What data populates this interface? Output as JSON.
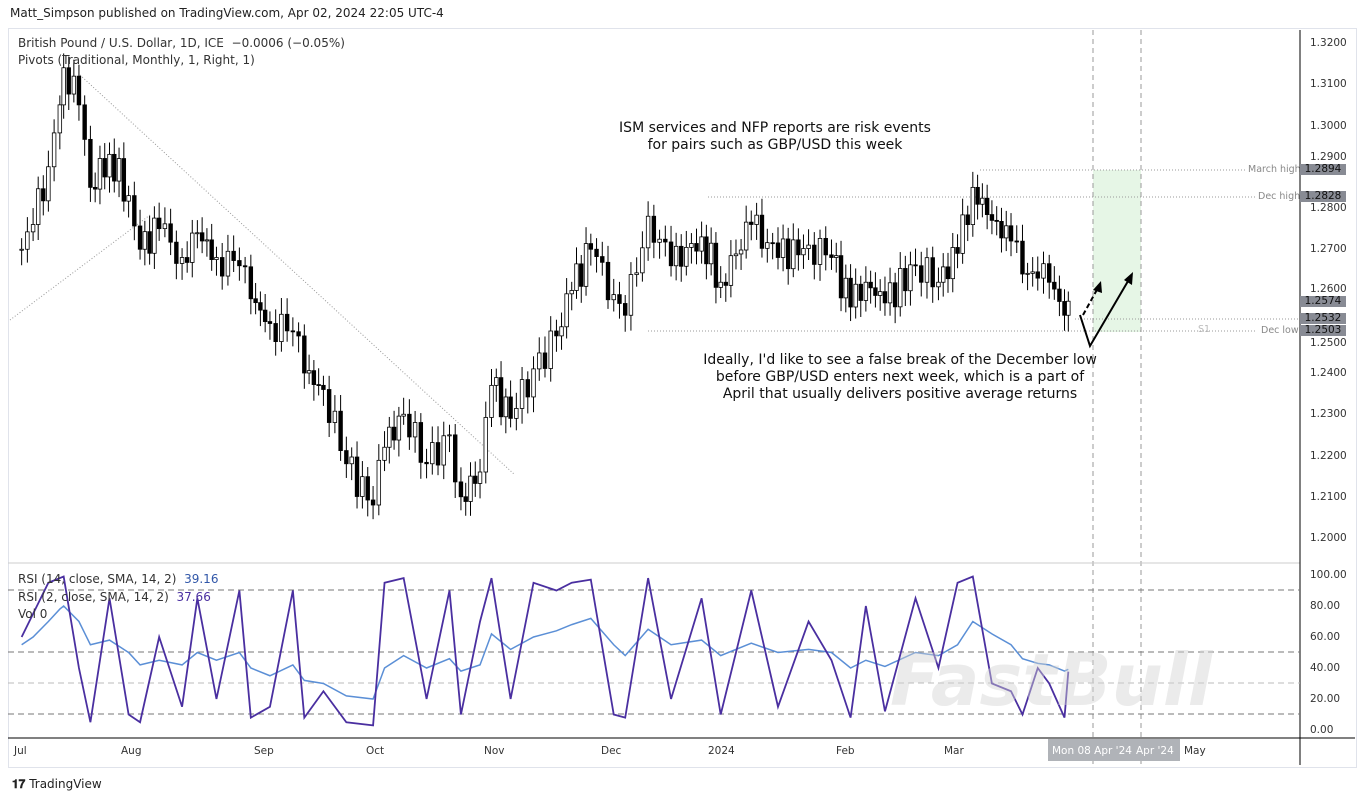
{
  "header": {
    "published": "Matt_Simpson published on TradingView.com, Apr 02, 2024 22:05 UTC-4"
  },
  "legend": {
    "symbol": "British Pound / U.S. Dollar, 1D, ICE",
    "change": "−0.0006 (−0.05%)",
    "pivots": "Pivots (Traditional, Monthly, 1, Right, 1)",
    "rsi14": "RSI (14, close, SMA, 14, 2)",
    "rsi14_value": "39.16",
    "rsi2": "RSI (2, close, SMA, 14, 2)",
    "rsi2_value": "37.66",
    "vol": "Vol 0"
  },
  "annotations": {
    "top": "ISM services and NFP reports are risk events\nfor pairs such as GBP/USD this week",
    "bottom": "Ideally, I'd like to see a false break of the December low\nbefore GBP/USD enters next week, which is a part of\nApril that usually delivers positive average returns",
    "march_high": "March high",
    "dec_high": "Dec high",
    "dec_low": "Dec low",
    "s1": "S1"
  },
  "price_tags": [
    "1.2894",
    "1.2828",
    "1.2574",
    "1.2532",
    "1.2503"
  ],
  "colors": {
    "up": "#ffffff",
    "down": "#000000",
    "rsi2": "#4a2fa0",
    "rsi14": "#5b8fd6",
    "zone": "#e6f6e6"
  },
  "watermark": "FastBull",
  "branding": "TradingView",
  "chart_data": {
    "type": "candlestick",
    "ylim": [
      1.195,
      1.325
    ],
    "y_ticks": [
      "1.3200",
      "1.3100",
      "1.3000",
      "1.2900",
      "1.2800",
      "1.2700",
      "1.2600",
      "1.2500",
      "1.2400",
      "1.2300",
      "1.2200",
      "1.2100",
      "1.2000"
    ],
    "x_ticks": [
      "Jul",
      "Aug",
      "Sep",
      "Oct",
      "Nov",
      "Dec",
      "2024",
      "Feb",
      "Mar",
      "Apr",
      "May"
    ],
    "x_cursor_labels": [
      "Mon 08 Apr '24",
      "Apr '24"
    ],
    "rsi_ticks": [
      "100.00",
      "80.00",
      "60.00",
      "40.00",
      "20.00",
      "0.00"
    ],
    "series": [
      {
        "date": "2023-07-03",
        "close": 1.27,
        "rsi2": 60,
        "rsi14": 55
      },
      {
        "date": "2023-07-06",
        "close": 1.276,
        "rsi2": 75,
        "rsi14": 60
      },
      {
        "date": "2023-07-10",
        "close": 1.29,
        "rsi2": 95,
        "rsi14": 70
      },
      {
        "date": "2023-07-13",
        "close": 1.305,
        "rsi2": 98,
        "rsi14": 78
      },
      {
        "date": "2023-07-14",
        "close": 1.314,
        "rsi2": 99,
        "rsi14": 80
      },
      {
        "date": "2023-07-18",
        "close": 1.305,
        "rsi2": 40,
        "rsi14": 70
      },
      {
        "date": "2023-07-21",
        "close": 1.285,
        "rsi2": 5,
        "rsi14": 55
      },
      {
        "date": "2023-07-26",
        "close": 1.293,
        "rsi2": 85,
        "rsi14": 58
      },
      {
        "date": "2023-07-31",
        "close": 1.283,
        "rsi2": 10,
        "rsi14": 50
      },
      {
        "date": "2023-08-03",
        "close": 1.27,
        "rsi2": 5,
        "rsi14": 42
      },
      {
        "date": "2023-08-08",
        "close": 1.275,
        "rsi2": 60,
        "rsi14": 45
      },
      {
        "date": "2023-08-14",
        "close": 1.268,
        "rsi2": 15,
        "rsi14": 42
      },
      {
        "date": "2023-08-18",
        "close": 1.274,
        "rsi2": 85,
        "rsi14": 50
      },
      {
        "date": "2023-08-23",
        "close": 1.268,
        "rsi2": 20,
        "rsi14": 45
      },
      {
        "date": "2023-08-29",
        "close": 1.266,
        "rsi2": 90,
        "rsi14": 50
      },
      {
        "date": "2023-09-01",
        "close": 1.258,
        "rsi2": 8,
        "rsi14": 40
      },
      {
        "date": "2023-09-06",
        "close": 1.252,
        "rsi2": 15,
        "rsi14": 35
      },
      {
        "date": "2023-09-12",
        "close": 1.25,
        "rsi2": 90,
        "rsi14": 42
      },
      {
        "date": "2023-09-15",
        "close": 1.24,
        "rsi2": 8,
        "rsi14": 32
      },
      {
        "date": "2023-09-20",
        "close": 1.236,
        "rsi2": 25,
        "rsi14": 30
      },
      {
        "date": "2023-09-26",
        "close": 1.218,
        "rsi2": 5,
        "rsi14": 22
      },
      {
        "date": "2023-10-03",
        "close": 1.208,
        "rsi2": 3,
        "rsi14": 20
      },
      {
        "date": "2023-10-06",
        "close": 1.222,
        "rsi2": 95,
        "rsi14": 40
      },
      {
        "date": "2023-10-11",
        "close": 1.23,
        "rsi2": 98,
        "rsi14": 48
      },
      {
        "date": "2023-10-17",
        "close": 1.218,
        "rsi2": 20,
        "rsi14": 40
      },
      {
        "date": "2023-10-23",
        "close": 1.225,
        "rsi2": 90,
        "rsi14": 46
      },
      {
        "date": "2023-10-26",
        "close": 1.21,
        "rsi2": 10,
        "rsi14": 38
      },
      {
        "date": "2023-10-31",
        "close": 1.216,
        "rsi2": 70,
        "rsi14": 42
      },
      {
        "date": "2023-11-03",
        "close": 1.237,
        "rsi2": 98,
        "rsi14": 62
      },
      {
        "date": "2023-11-08",
        "close": 1.229,
        "rsi2": 20,
        "rsi14": 52
      },
      {
        "date": "2023-11-14",
        "close": 1.241,
        "rsi2": 95,
        "rsi14": 60
      },
      {
        "date": "2023-11-20",
        "close": 1.249,
        "rsi2": 90,
        "rsi14": 64
      },
      {
        "date": "2023-11-24",
        "close": 1.26,
        "rsi2": 95,
        "rsi14": 68
      },
      {
        "date": "2023-11-29",
        "close": 1.27,
        "rsi2": 97,
        "rsi14": 72
      },
      {
        "date": "2023-12-05",
        "close": 1.259,
        "rsi2": 10,
        "rsi14": 55
      },
      {
        "date": "2023-12-08",
        "close": 1.254,
        "rsi2": 8,
        "rsi14": 48
      },
      {
        "date": "2023-12-14",
        "close": 1.278,
        "rsi2": 98,
        "rsi14": 65
      },
      {
        "date": "2023-12-20",
        "close": 1.266,
        "rsi2": 20,
        "rsi14": 55
      },
      {
        "date": "2023-12-28",
        "close": 1.273,
        "rsi2": 85,
        "rsi14": 58
      },
      {
        "date": "2024-01-02",
        "close": 1.262,
        "rsi2": 10,
        "rsi14": 48
      },
      {
        "date": "2024-01-10",
        "close": 1.276,
        "rsi2": 90,
        "rsi14": 56
      },
      {
        "date": "2024-01-17",
        "close": 1.268,
        "rsi2": 15,
        "rsi14": 50
      },
      {
        "date": "2024-01-25",
        "close": 1.271,
        "rsi2": 70,
        "rsi14": 52
      },
      {
        "date": "2024-01-31",
        "close": 1.268,
        "rsi2": 45,
        "rsi14": 50
      },
      {
        "date": "2024-02-05",
        "close": 1.256,
        "rsi2": 8,
        "rsi14": 40
      },
      {
        "date": "2024-02-09",
        "close": 1.262,
        "rsi2": 80,
        "rsi14": 45
      },
      {
        "date": "2024-02-14",
        "close": 1.257,
        "rsi2": 12,
        "rsi14": 41
      },
      {
        "date": "2024-02-22",
        "close": 1.266,
        "rsi2": 85,
        "rsi14": 50
      },
      {
        "date": "2024-02-28",
        "close": 1.262,
        "rsi2": 40,
        "rsi14": 48
      },
      {
        "date": "2024-03-04",
        "close": 1.269,
        "rsi2": 95,
        "rsi14": 55
      },
      {
        "date": "2024-03-08",
        "close": 1.285,
        "rsi2": 99,
        "rsi14": 70
      },
      {
        "date": "2024-03-13",
        "close": 1.277,
        "rsi2": 30,
        "rsi14": 62
      },
      {
        "date": "2024-03-18",
        "close": 1.272,
        "rsi2": 25,
        "rsi14": 55
      },
      {
        "date": "2024-03-21",
        "close": 1.264,
        "rsi2": 10,
        "rsi14": 46
      },
      {
        "date": "2024-03-25",
        "close": 1.263,
        "rsi2": 40,
        "rsi14": 43
      },
      {
        "date": "2024-03-28",
        "close": 1.262,
        "rsi2": 30,
        "rsi14": 42
      },
      {
        "date": "2024-04-01",
        "close": 1.254,
        "rsi2": 8,
        "rsi14": 38
      },
      {
        "date": "2024-04-02",
        "close": 1.2574,
        "rsi2": 37.66,
        "rsi14": 39.16
      }
    ]
  }
}
